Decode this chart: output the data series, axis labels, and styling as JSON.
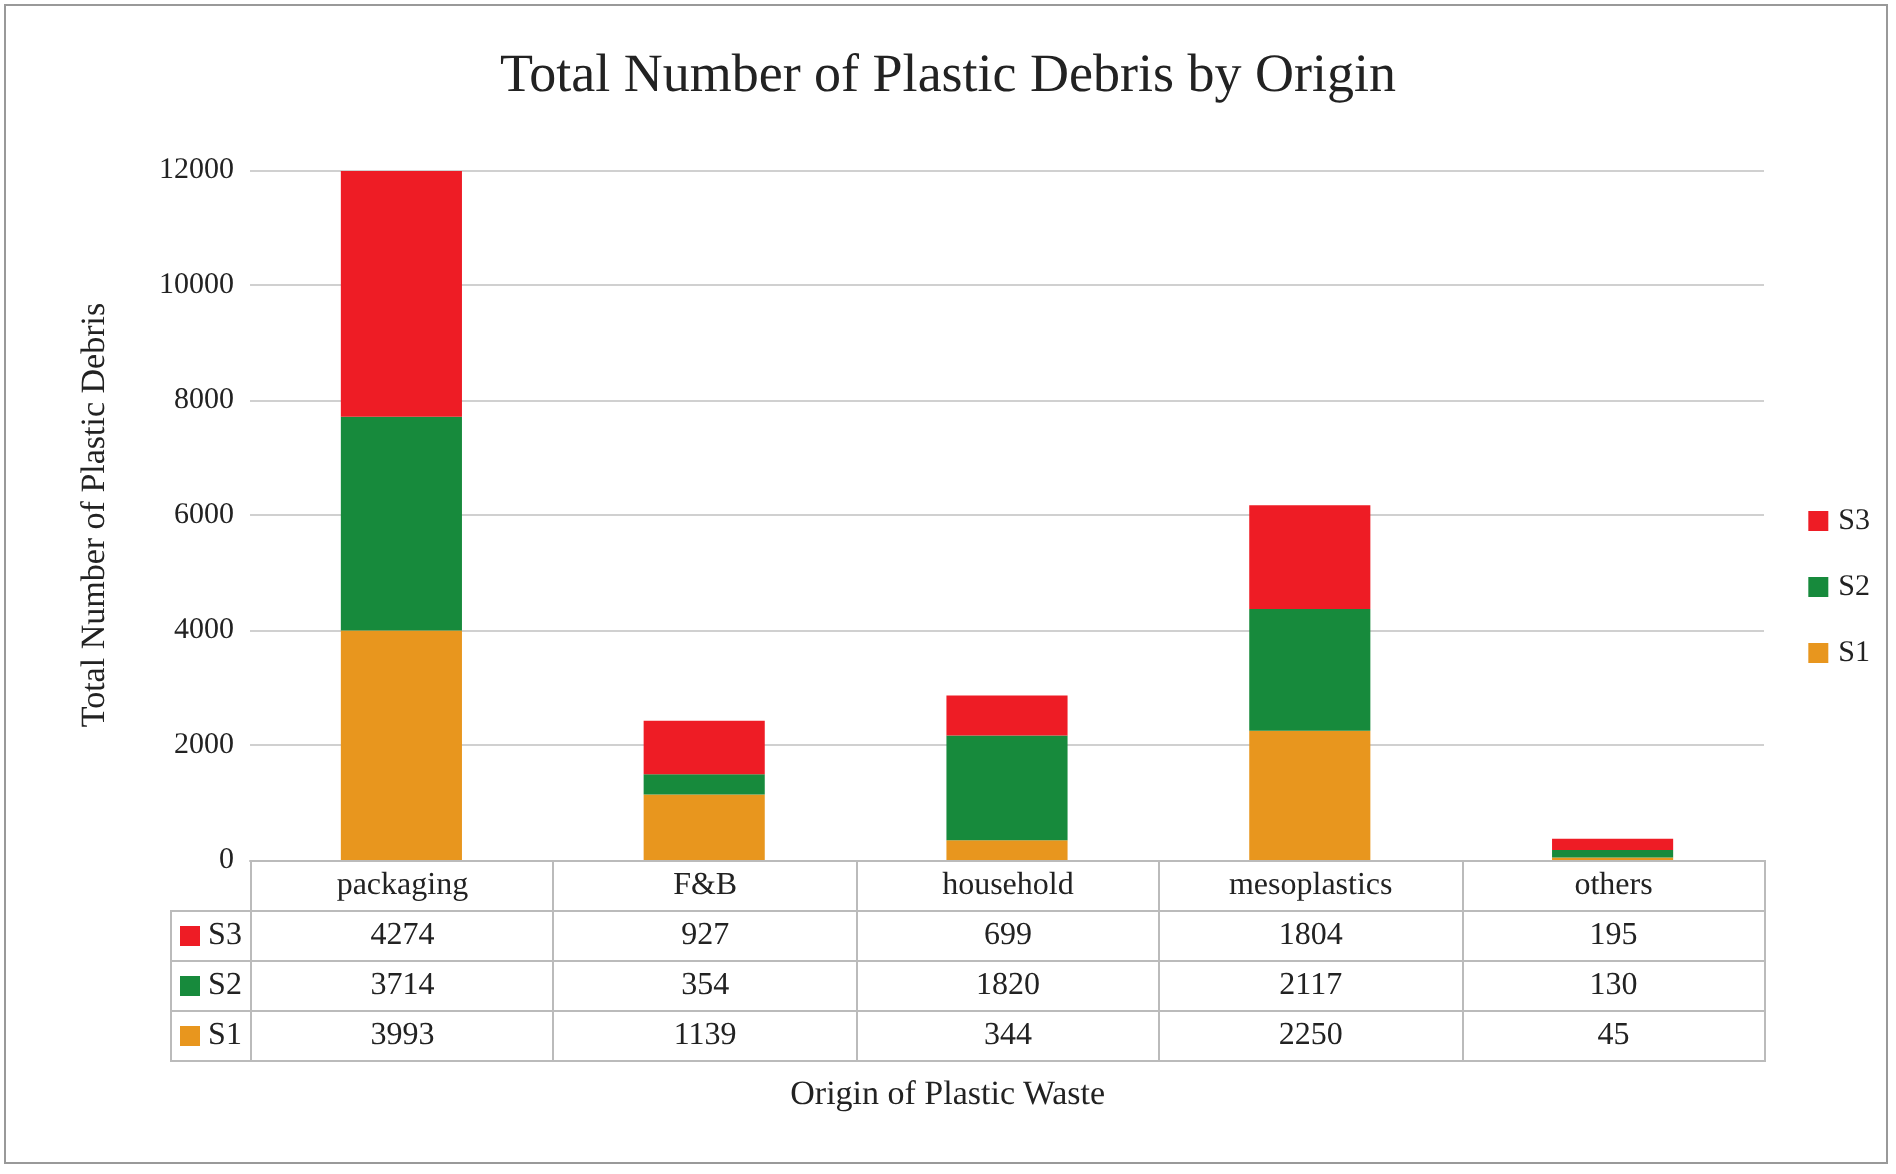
{
  "chart_data": {
    "type": "bar",
    "title": "Total Number of Plastic Debris by Origin",
    "annotations": [
      "Origin of Plastic Waste"
    ],
    "ylabel": "Total Number of Plastic Debris",
    "categories": [
      "packaging",
      "F&B",
      "household",
      "mesoplastics",
      "others"
    ],
    "series": [
      {
        "name": "S1",
        "color": "#e8961e",
        "values": [
          3993,
          1139,
          344,
          2250,
          45
        ]
      },
      {
        "name": "S2",
        "color": "#178a3c",
        "values": [
          3714,
          354,
          1820,
          2117,
          130
        ]
      },
      {
        "name": "S3",
        "color": "#ee1c25",
        "values": [
          4274,
          927,
          699,
          1804,
          195
        ]
      }
    ],
    "stacked": true,
    "ylim": [
      0,
      12000
    ],
    "yticks": [
      0,
      2000,
      4000,
      6000,
      8000,
      10000,
      12000
    ],
    "grid": "y",
    "legend": "right",
    "data_labels": true
  }
}
